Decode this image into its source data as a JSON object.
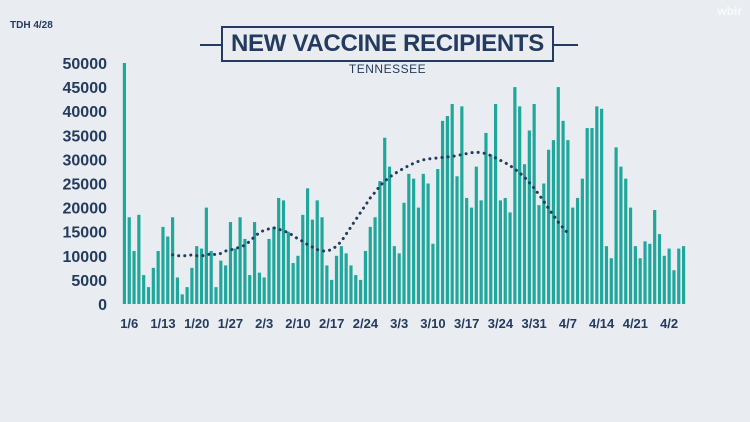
{
  "header": {
    "source": "TDH 4/28",
    "logo": "wbir"
  },
  "chart_data": {
    "type": "bar",
    "title": "NEW VACCINE RECIPIENTS",
    "subtitle": "TENNESSEE",
    "xlabel": "",
    "ylabel": "",
    "ylim": [
      0,
      50000
    ],
    "yticks": [
      0,
      5000,
      10000,
      15000,
      20000,
      25000,
      30000,
      35000,
      40000,
      45000,
      50000
    ],
    "xtick_labels": [
      "1/6",
      "1/13",
      "1/20",
      "1/27",
      "2/3",
      "2/10",
      "2/17",
      "2/24",
      "3/3",
      "3/10",
      "3/17",
      "3/24",
      "3/31",
      "4/7",
      "4/14",
      "4/21",
      "4/2"
    ],
    "grid": false,
    "colors": {
      "bar": "#1fa79b",
      "average": "#243a5e",
      "text": "#243a5e",
      "background": "#e9edf1"
    },
    "series": [
      {
        "kind": "bar",
        "values": [
          50000,
          18000,
          11000,
          18500,
          6000,
          3500,
          7500,
          11000,
          16000,
          14000,
          18000,
          5500,
          2000,
          3500,
          7500,
          12000,
          11500,
          20000,
          11000,
          3500,
          9000,
          8000,
          17000,
          11500,
          18000,
          13500,
          6000,
          17000,
          6500,
          5500,
          13500,
          16000,
          22000,
          21500,
          15000,
          8500,
          10000,
          18500,
          24000,
          17500,
          21500,
          18000,
          8000,
          5000,
          10000,
          12000,
          10500,
          8000,
          6000,
          5000,
          11000,
          16000,
          18000,
          25500,
          34500,
          28500,
          12000,
          10500,
          21000,
          27000,
          26000,
          20000,
          27000,
          25000,
          12500,
          28000,
          38000,
          39000,
          41500,
          26500,
          41000,
          22000,
          20000,
          28500,
          21500,
          35500,
          31000,
          41500,
          21500,
          22000,
          19000,
          45000,
          41000,
          29000,
          36000,
          41500,
          20500,
          25000,
          32000,
          34000,
          45000,
          38000,
          34000,
          20000,
          22000,
          26000,
          36500,
          36500,
          41000,
          40500,
          12000,
          9500,
          32500,
          28500,
          26000,
          20000,
          12000,
          9500,
          13000,
          12500,
          19500,
          14500,
          10000,
          11500,
          7000,
          11500,
          12000
        ]
      },
      {
        "kind": "line",
        "style": "dotted",
        "start_index": 10,
        "values": [
          10200,
          10000,
          10000,
          10000,
          10200,
          10000,
          10000,
          10100,
          10500,
          10200,
          10500,
          11000,
          11200,
          11500,
          11800,
          12200,
          13000,
          14000,
          14800,
          15300,
          15600,
          15800,
          15500,
          15200,
          14800,
          14200,
          13500,
          13000,
          12300,
          11800,
          11300,
          11000,
          11000,
          11300,
          12000,
          13000,
          14500,
          16000,
          17500,
          19000,
          20500,
          22000,
          23200,
          24500,
          25500,
          26300,
          27000,
          27600,
          28200,
          28700,
          29200,
          29600,
          29900,
          30100,
          30200,
          30300,
          30400,
          30500,
          30600,
          30800,
          31000,
          31200,
          31400,
          31500,
          31400,
          31200,
          30800,
          30300,
          29800,
          29300,
          28700,
          28000,
          27200,
          26300,
          25200,
          24000,
          22700,
          21300,
          19800,
          18400,
          17000,
          15800,
          14700
        ]
      }
    ]
  }
}
